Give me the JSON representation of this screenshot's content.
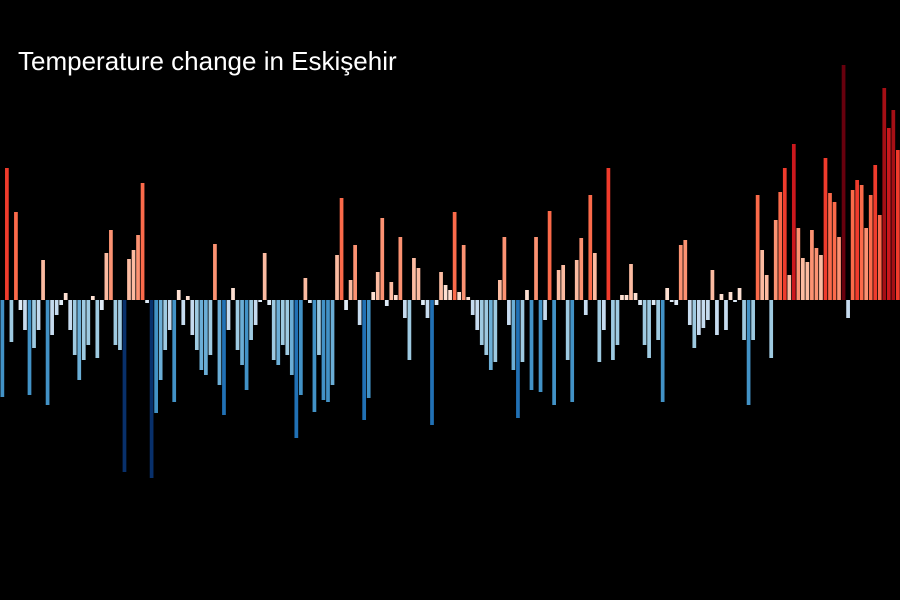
{
  "chart_data": {
    "type": "bar",
    "title": "Temperature change in Eskişehir",
    "values": [
      -0.97,
      1.32,
      -0.42,
      0.88,
      -0.1,
      -0.3,
      -0.95,
      -0.48,
      -0.3,
      0.4,
      -1.05,
      -0.35,
      -0.15,
      -0.05,
      0.07,
      -0.3,
      -0.55,
      -0.8,
      -0.6,
      -0.45,
      0.04,
      -0.58,
      -0.1,
      0.47,
      0.7,
      -0.45,
      -0.5,
      -1.72,
      0.41,
      0.5,
      0.65,
      1.17,
      -0.03,
      -1.78,
      -1.13,
      -0.8,
      -0.5,
      -0.3,
      -1.02,
      0.1,
      -0.25,
      0.04,
      -0.35,
      -0.5,
      -0.7,
      -0.75,
      -0.55,
      0.56,
      -0.85,
      -1.15,
      -0.3,
      0.12,
      -0.5,
      -0.65,
      -0.9,
      -0.4,
      -0.25,
      -0.02,
      0.47,
      -0.05,
      -0.6,
      -0.65,
      -0.45,
      -0.55,
      -0.75,
      -1.38,
      -0.95,
      0.22,
      -0.03,
      -1.12,
      -0.55,
      -1.0,
      -1.02,
      -0.85,
      0.45,
      1.02,
      -0.1,
      0.2,
      0.55,
      -0.25,
      -1.2,
      -0.98,
      0.08,
      0.28,
      0.82,
      -0.06,
      0.18,
      0.05,
      0.63,
      -0.18,
      -0.6,
      0.42,
      0.32,
      -0.05,
      -0.18,
      -1.25,
      -0.05,
      0.28,
      0.15,
      0.1,
      0.88,
      0.08,
      0.55,
      0.03,
      -0.15,
      -0.3,
      -0.45,
      -0.55,
      -0.7,
      -0.62,
      0.2,
      0.63,
      -0.25,
      -0.7,
      -1.18,
      -0.62,
      0.1,
      -0.9,
      0.63,
      -0.92,
      -0.2,
      0.89,
      -1.05,
      0.3,
      0.35,
      -0.6,
      -1.02,
      0.4,
      0.62,
      -0.15,
      1.05,
      0.47,
      -0.62,
      -0.3,
      1.32,
      -0.6,
      -0.45,
      0.05,
      0.05,
      0.36,
      0.07,
      -0.05,
      -0.45,
      -0.58,
      -0.05,
      -0.4,
      -1.02,
      0.12,
      -0.02,
      -0.05,
      0.55,
      0.6,
      -0.25,
      -0.48,
      -0.35,
      -0.28,
      -0.2,
      0.3,
      -0.35,
      0.06,
      -0.3,
      0.08,
      -0.02,
      0.12,
      -0.4,
      -1.05,
      -0.4,
      1.05,
      0.5,
      0.25,
      -0.58,
      0.8,
      1.08,
      1.32,
      0.25,
      1.56,
      0.72,
      0.42,
      0.38,
      0.7,
      0.52,
      0.45,
      1.42,
      1.07,
      0.98,
      0.63,
      2.35,
      -0.18,
      1.1,
      1.2,
      1.15,
      0.72,
      1.05,
      1.35,
      0.85,
      2.12,
      1.72,
      1.9,
      1.5
    ],
    "ylim": [
      -3,
      3
    ],
    "colormap": [
      "#08306b",
      "#08519c",
      "#2171b5",
      "#4292c6",
      "#6baed6",
      "#9ecae1",
      "#c6dbef",
      "#deebf7",
      "#fee0d2",
      "#fcbba1",
      "#fc9272",
      "#fb6a4a",
      "#ef3b2c",
      "#cb181d",
      "#a50f15",
      "#67000d"
    ]
  }
}
